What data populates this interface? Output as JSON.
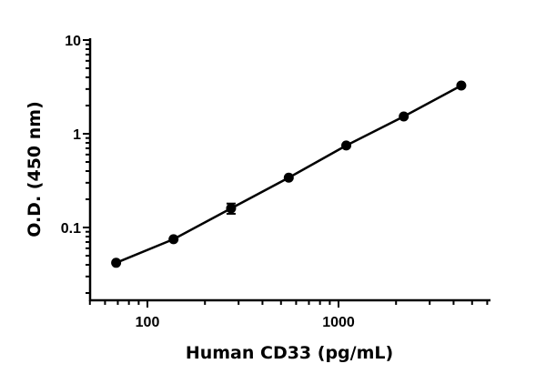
{
  "chart_data": {
    "type": "line",
    "title": "",
    "xlabel": "Human CD33 (pg/mL)",
    "ylabel": "O.D. (450 nm)",
    "xscale": "log",
    "yscale": "log",
    "xlim": [
      50,
      6300
    ],
    "ylim": [
      0.017,
      10
    ],
    "x_ticks": [
      100,
      1000
    ],
    "x_tick_labels": [
      "100",
      "1000"
    ],
    "y_ticks": [
      0.1,
      1,
      10
    ],
    "y_tick_labels": [
      "0.1",
      "1",
      "10"
    ],
    "grid": false,
    "legend": null,
    "series": [
      {
        "name": "Human CD33",
        "marker": "circle",
        "color": "#000000",
        "x": [
          68.6,
          137,
          274,
          549,
          1098,
          2195,
          4390
        ],
        "y": [
          0.042,
          0.075,
          0.16,
          0.34,
          0.75,
          1.53,
          3.27
        ],
        "error": [
          0.002,
          0.003,
          0.02,
          0.01,
          0.02,
          0.03,
          0.05
        ]
      }
    ]
  }
}
